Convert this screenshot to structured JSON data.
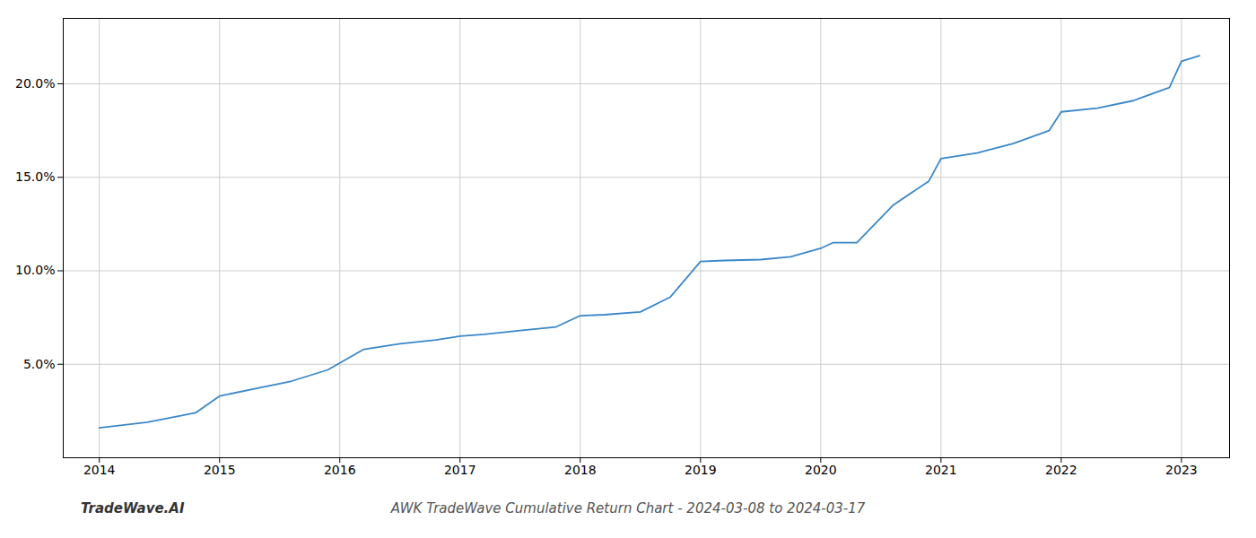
{
  "chart_data": {
    "type": "line",
    "title": "AWK TradeWave Cumulative Return Chart - 2024-03-08 to 2024-03-17",
    "annotations": [
      "TradeWave.AI"
    ],
    "x": [
      2014.0,
      2014.4,
      2014.8,
      2015.0,
      2015.3,
      2015.6,
      2015.9,
      2016.2,
      2016.5,
      2016.8,
      2017.0,
      2017.2,
      2017.5,
      2017.8,
      2018.0,
      2018.2,
      2018.5,
      2018.75,
      2019.0,
      2019.2,
      2019.5,
      2019.75,
      2020.0,
      2020.1,
      2020.3,
      2020.6,
      2020.9,
      2021.0,
      2021.3,
      2021.6,
      2021.9,
      2022.0,
      2022.3,
      2022.6,
      2022.9,
      2023.0,
      2023.15
    ],
    "values": [
      1.6,
      1.9,
      2.4,
      3.3,
      3.7,
      4.1,
      4.7,
      5.8,
      6.1,
      6.3,
      6.5,
      6.6,
      6.8,
      7.0,
      7.6,
      7.65,
      7.8,
      8.6,
      10.5,
      10.55,
      10.6,
      10.75,
      11.2,
      11.5,
      11.5,
      13.5,
      14.8,
      16.0,
      16.3,
      16.8,
      17.5,
      18.5,
      18.7,
      19.1,
      19.8,
      21.2,
      21.5
    ],
    "color": "#3a87c8",
    "xlim": [
      2013.7,
      2023.4
    ],
    "xticks": [
      2014,
      2015,
      2016,
      2017,
      2018,
      2019,
      2020,
      2021,
      2022,
      2023
    ],
    "ylim": [
      0.0,
      23.5
    ],
    "yticks": [
      {
        "value": 5.0,
        "label": "5.0%"
      },
      {
        "value": 10.0,
        "label": "10.0%"
      },
      {
        "value": 15.0,
        "label": "15.0%"
      },
      {
        "value": 20.0,
        "label": "20.0%"
      }
    ],
    "grid": true
  }
}
